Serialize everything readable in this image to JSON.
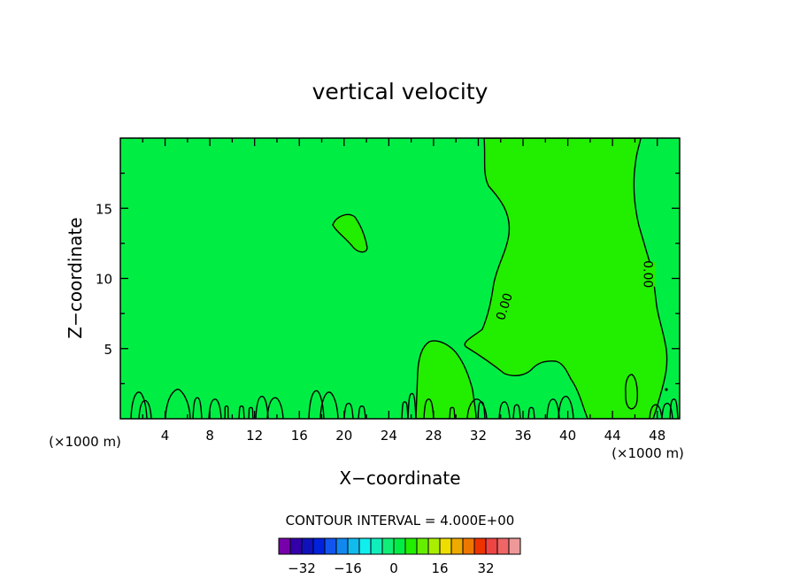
{
  "chart_data": {
    "type": "contour",
    "title": "vertical velocity",
    "xlabel": "X−coordinate",
    "ylabel": "Z−coordinate",
    "x_unit_left": "(×1000 m)",
    "x_unit_right": "(×1000 m)",
    "xlim": [
      0,
      50
    ],
    "ylim": [
      0,
      20
    ],
    "x_ticks": [
      {
        "value": 4,
        "label": "4"
      },
      {
        "value": 8,
        "label": "8"
      },
      {
        "value": 12,
        "label": "12"
      },
      {
        "value": 16,
        "label": "16"
      },
      {
        "value": 20,
        "label": "20"
      },
      {
        "value": 24,
        "label": "24"
      },
      {
        "value": 28,
        "label": "28"
      },
      {
        "value": 32,
        "label": "32"
      },
      {
        "value": 36,
        "label": "36"
      },
      {
        "value": 40,
        "label": "40"
      },
      {
        "value": 44,
        "label": "44"
      },
      {
        "value": 48,
        "label": "48"
      }
    ],
    "y_ticks": [
      {
        "value": 5,
        "label": "5"
      },
      {
        "value": 10,
        "label": "10"
      },
      {
        "value": 15,
        "label": "15"
      }
    ],
    "background_color": "#00ee44",
    "positive_region_color": "#22ee00",
    "contour_labels": [
      {
        "text": "0.00",
        "x": 34.3,
        "y": 8.0,
        "angle": -72
      },
      {
        "text": "0.00",
        "x": 47.2,
        "y": 10.3,
        "angle": 90
      }
    ],
    "contour_interval_label": "CONTOUR INTERVAL = 4.000E+00",
    "colorbar": {
      "colors": [
        "#7700aa",
        "#3300aa",
        "#1111bb",
        "#0022dd",
        "#1155ee",
        "#1188ee",
        "#11bbee",
        "#11eeee",
        "#11eebb",
        "#11ee77",
        "#00ee44",
        "#22ee00",
        "#66ee00",
        "#aaee00",
        "#eedd00",
        "#eeaa00",
        "#ee7700",
        "#ee3300",
        "#ee4444",
        "#ee6666",
        "#ee9999"
      ],
      "value_min": -40,
      "value_step": 4,
      "labels": [
        {
          "value": -32,
          "label": "−32"
        },
        {
          "value": -16,
          "label": "−16"
        },
        {
          "value": 0,
          "label": "0"
        },
        {
          "value": 16,
          "label": "16"
        },
        {
          "value": 32,
          "label": "32"
        }
      ]
    }
  }
}
